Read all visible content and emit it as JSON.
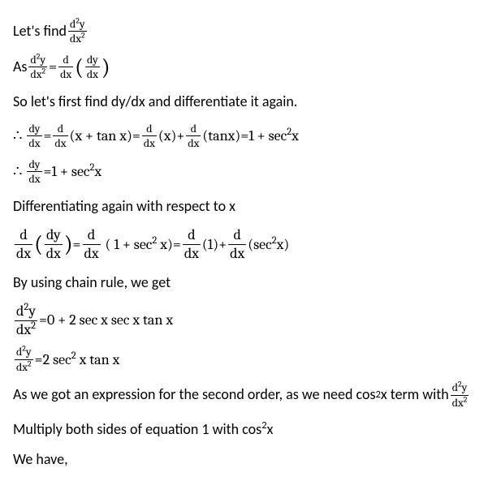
{
  "line1_prefix": "Let's find ",
  "line2_prefix": "As ",
  "line3": "So let's first find dy/dx and differentiate it again.",
  "line6": "Differentiating again with respect to x",
  "line8": "By using chain rule, we get",
  "line11_prefix": "As we got an expression for the second order, as we need cos",
  "line11_mid": "x term with ",
  "line12_prefix": "Multiply both sides of equation 1 with cos",
  "line12_suffix": "x",
  "line13": "We have,",
  "sym": {
    "d2y": "d",
    "two": "2",
    "y": "y",
    "dx2": "dx",
    "d": "d",
    "dx": "dx",
    "dy": "dy",
    "eq": " = ",
    "plus": " + ",
    "therefore": "∴",
    "expr_xtanx": "(x + tan x)",
    "expr_x": "(x)",
    "expr_tanx": "(tanx)",
    "result1": "1 + sec",
    "xsuffix": "x",
    "expr_1sec2x": "( 1 + sec",
    "expr_1sec2x_close": " x)",
    "expr_1": "(1)",
    "expr_sec2x_open": "(sec",
    "expr_sec2x_close": "x)",
    "result2": "0 + 2 sec x sec x tan x",
    "result3": "2 sec",
    "result3_suffix": " x tan x"
  }
}
